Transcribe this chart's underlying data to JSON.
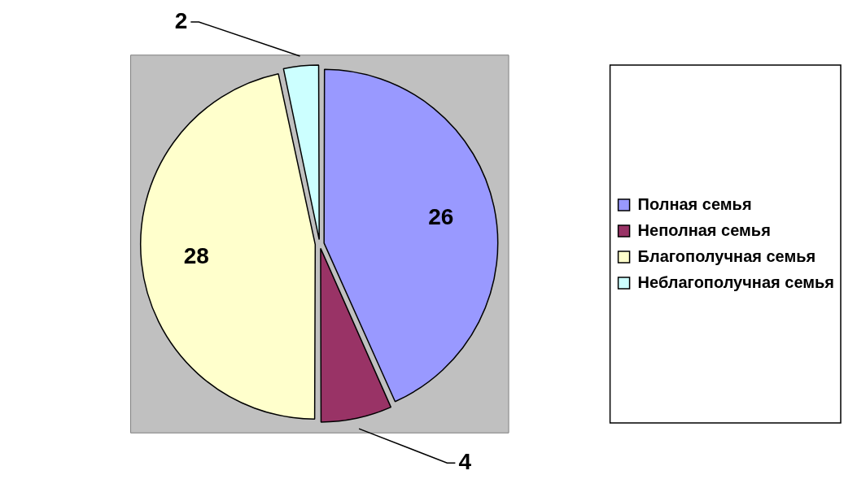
{
  "chart_data": {
    "type": "pie",
    "categories": [
      "Полная семья",
      "Неполная семья",
      "Благополучная семья",
      "Неблагополучная семья"
    ],
    "values": [
      26,
      4,
      28,
      2
    ],
    "colors": [
      "#9999ff",
      "#993366",
      "#ffffcc",
      "#ccffff"
    ],
    "data_labels": true,
    "legend": "right"
  }
}
